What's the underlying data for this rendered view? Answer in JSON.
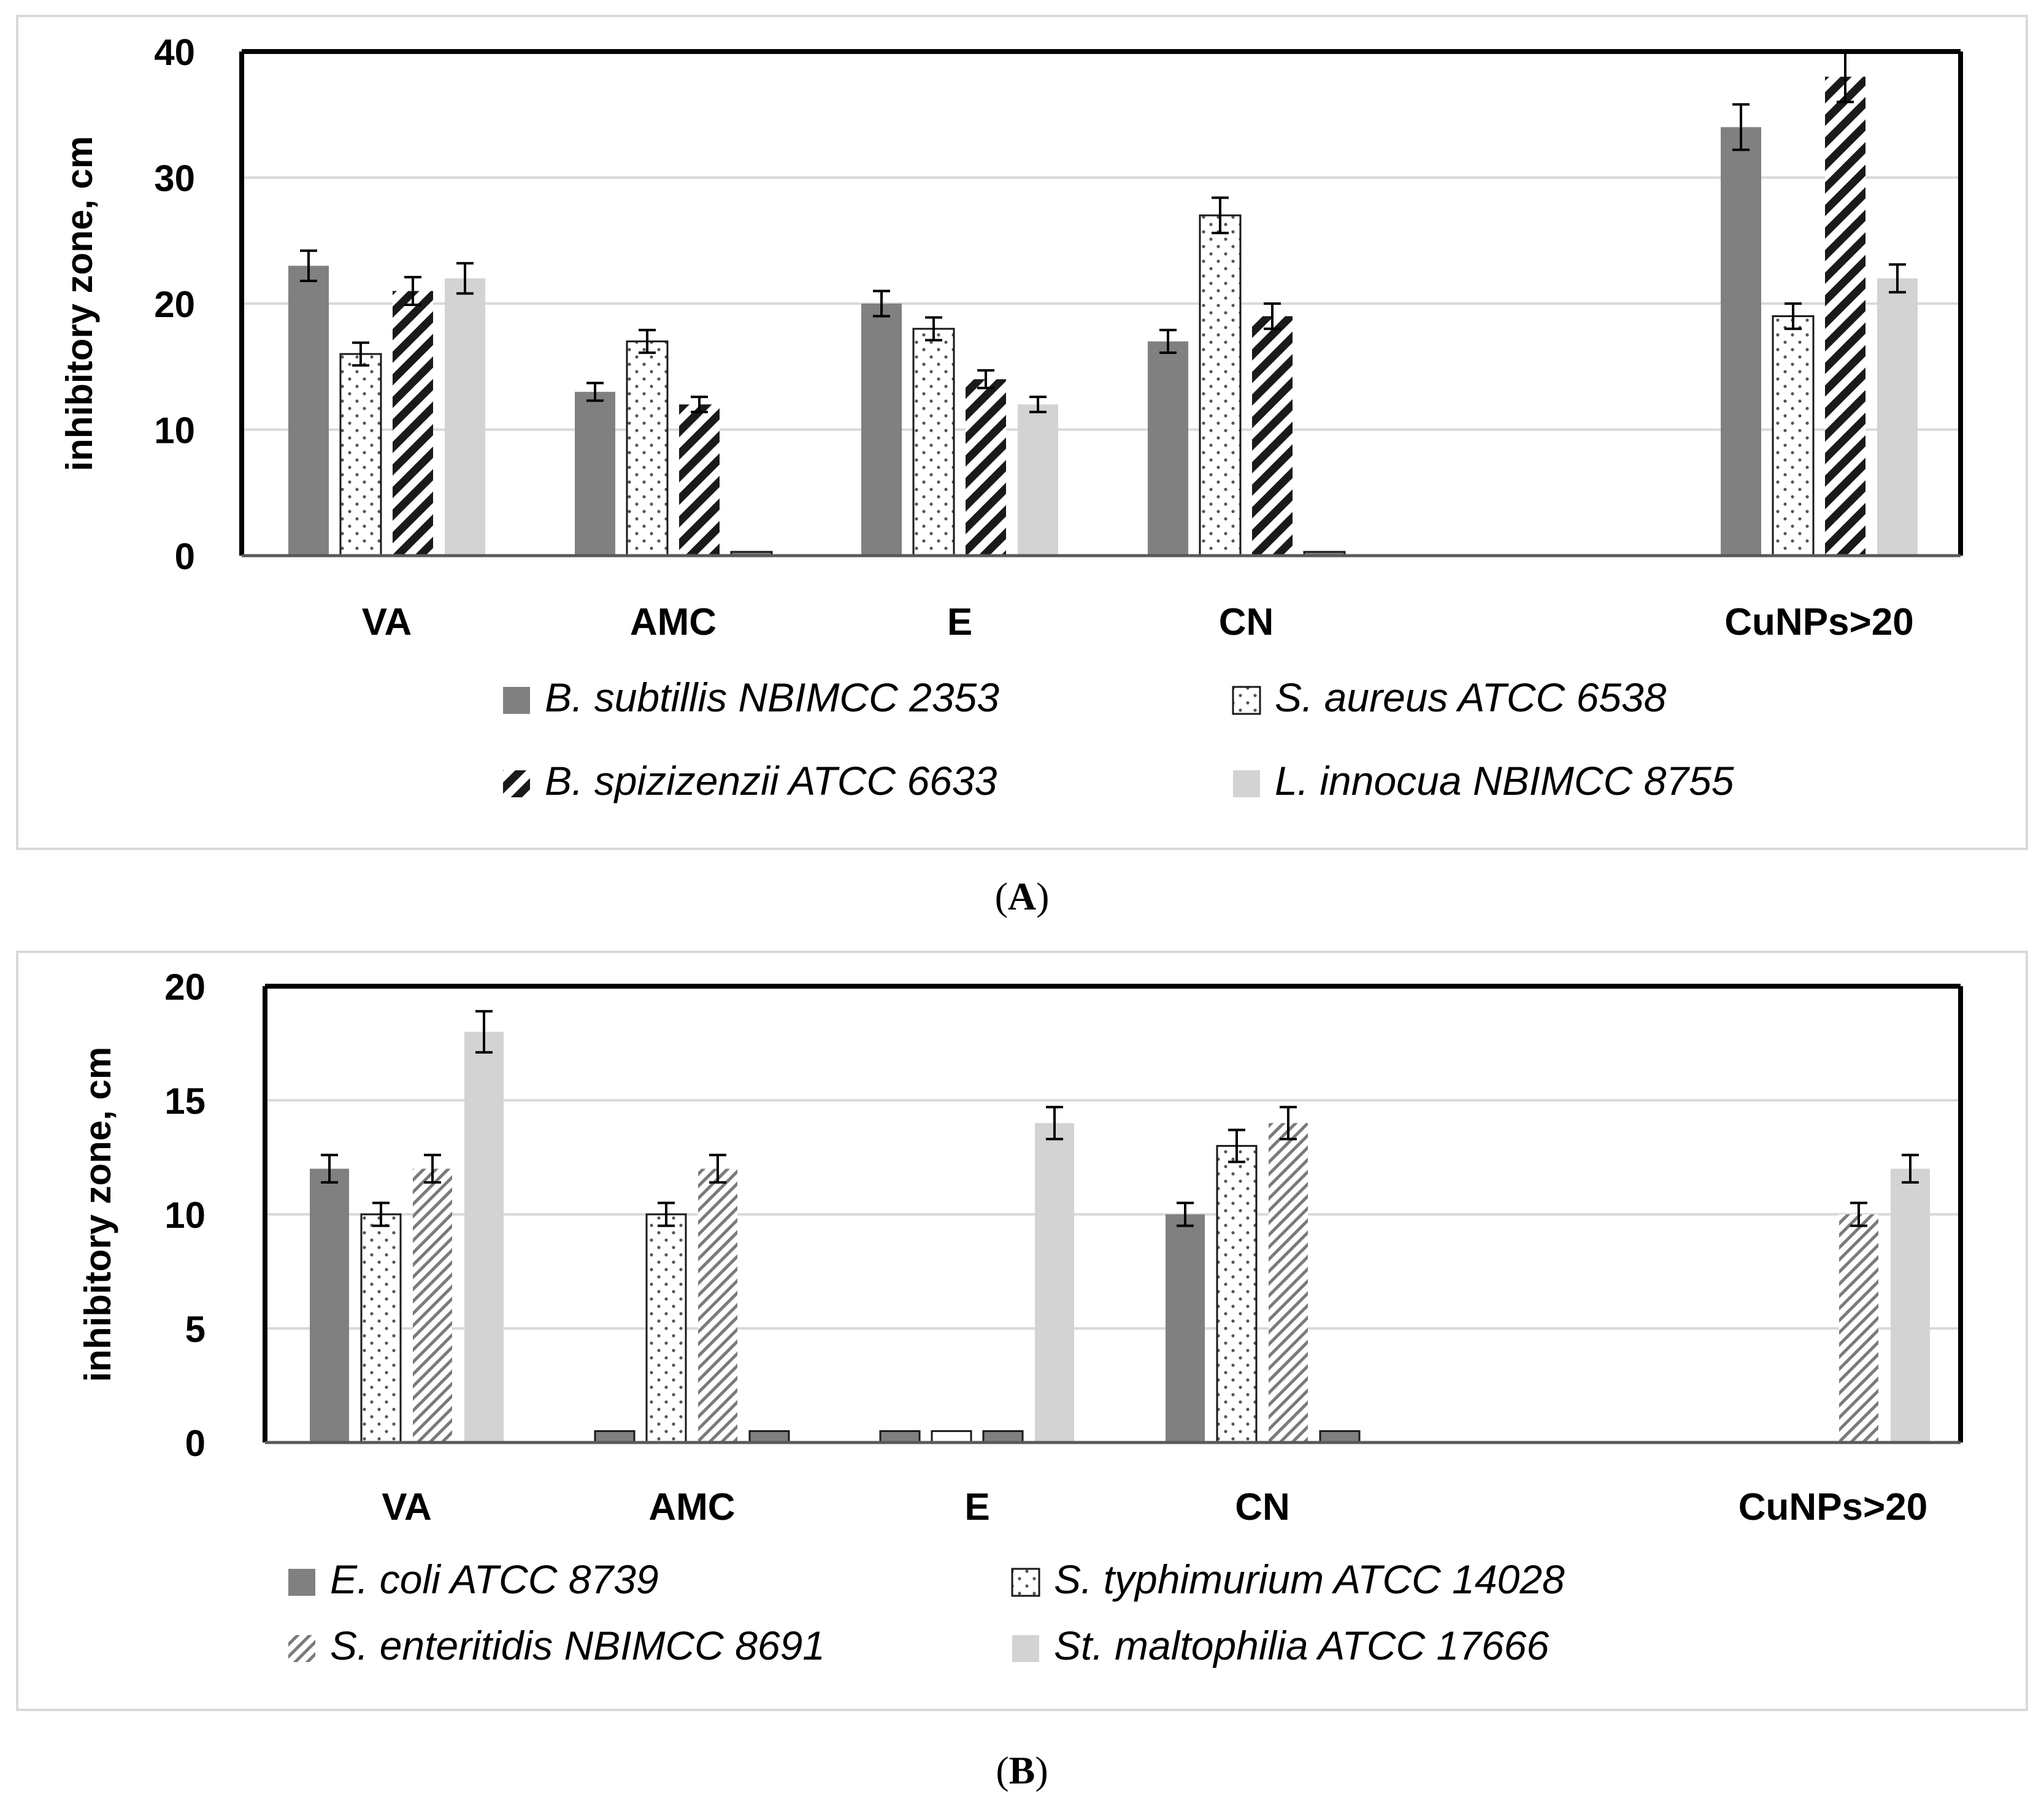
{
  "chart_data": [
    {
      "panel": "A",
      "type": "bar",
      "ylabel": "inhibitory zone, cm",
      "ylim": [
        0,
        40
      ],
      "yticks": [
        "0",
        "10",
        "20",
        "30",
        "40"
      ],
      "grid": true,
      "categories": [
        "VA",
        "AMC",
        "E",
        "CN",
        "",
        "CuNPs>20"
      ],
      "series": [
        {
          "name": "B. subtillis NBIMCC 2353",
          "style": "solid-dark",
          "values": [
            23,
            13,
            20,
            17,
            0,
            34
          ],
          "errors": [
            1.2,
            0.7,
            1.0,
            0.9,
            0,
            1.8
          ]
        },
        {
          "name": "S. aureus ATCC 6538",
          "style": "dots",
          "values": [
            16,
            17,
            18,
            27,
            0,
            19
          ],
          "errors": [
            0.9,
            0.9,
            0.9,
            1.4,
            0,
            1.0
          ]
        },
        {
          "name": "B. spizizenzii ATCC 6633",
          "style": "hatch-bold",
          "values": [
            21,
            12,
            14,
            19,
            0,
            38
          ],
          "errors": [
            1.1,
            0.6,
            0.7,
            1.0,
            0,
            2.0
          ]
        },
        {
          "name": "L. innocua NBIMCC 8755",
          "style": "solid-light",
          "values": [
            22,
            0.3,
            12,
            0.3,
            0,
            22
          ],
          "errors": [
            1.2,
            0,
            0.6,
            0,
            0,
            1.1
          ]
        }
      ],
      "caption": "A"
    },
    {
      "panel": "B",
      "type": "bar",
      "ylabel": "inhibitory zone, cm",
      "ylim": [
        0,
        20
      ],
      "yticks": [
        "0",
        "5",
        "10",
        "15",
        "20"
      ],
      "grid": true,
      "categories": [
        "VA",
        "AMC",
        "E",
        "CN",
        "",
        "CuNPs>20"
      ],
      "series": [
        {
          "name": "E. coli ATCC 8739",
          "style": "solid-dark",
          "values": [
            12,
            0.5,
            0.5,
            10,
            0,
            0
          ],
          "errors": [
            0.6,
            0,
            0,
            0.5,
            0,
            0
          ]
        },
        {
          "name": "S. typhimurium ATCC 14028",
          "style": "dots",
          "values": [
            10,
            10,
            0.5,
            13,
            0,
            0
          ],
          "errors": [
            0.5,
            0.5,
            0,
            0.7,
            0,
            0
          ]
        },
        {
          "name": "S. enteritidis NBIMCC 8691",
          "style": "hatch-fine",
          "values": [
            12,
            12,
            0.5,
            14,
            0,
            10
          ],
          "errors": [
            0.6,
            0.6,
            0,
            0.7,
            0,
            0.5
          ]
        },
        {
          "name": "St. maltophilia ATCC 17666",
          "style": "solid-light",
          "values": [
            18,
            0.5,
            14,
            0.5,
            0,
            12
          ],
          "errors": [
            0.9,
            0,
            0.7,
            0,
            0,
            0.6
          ]
        }
      ],
      "caption": "B"
    }
  ],
  "captions": {
    "A": "A",
    "B": "B"
  }
}
